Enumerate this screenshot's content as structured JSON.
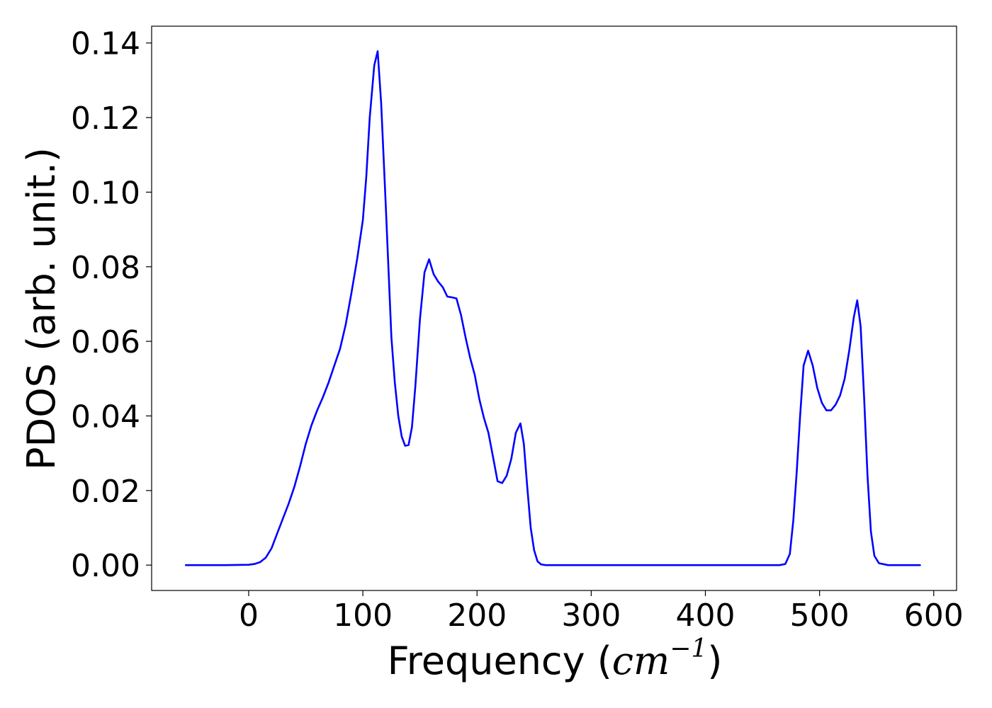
{
  "chart_data": {
    "type": "line",
    "xlabel": "Frequency (cm⁻¹)",
    "xlabel_parts": {
      "prefix": "Frequency (",
      "unit": "cm",
      "exponent": "−1",
      "suffix": ")"
    },
    "ylabel": "PDOS (arb. unit.)",
    "xlim": [
      -85,
      620
    ],
    "ylim": [
      -0.0068,
      0.1445
    ],
    "xticks": [
      0,
      100,
      200,
      300,
      400,
      500,
      600
    ],
    "xtick_labels": [
      "0",
      "100",
      "200",
      "300",
      "400",
      "500",
      "600"
    ],
    "yticks": [
      0.0,
      0.02,
      0.04,
      0.06,
      0.08,
      0.1,
      0.12,
      0.14
    ],
    "ytick_labels": [
      "0.00",
      "0.02",
      "0.04",
      "0.06",
      "0.08",
      "0.10",
      "0.12",
      "0.14"
    ],
    "grid": false,
    "line_color": "#0000ff",
    "series": [
      {
        "x": [
          -55,
          -40,
          -20,
          0,
          5,
          10,
          15,
          20,
          25,
          30,
          35,
          40,
          45,
          50,
          55,
          60,
          65,
          70,
          75,
          80,
          85,
          90,
          95,
          100,
          103,
          106,
          110,
          113,
          116,
          120,
          125,
          128,
          131,
          134,
          137,
          140,
          143,
          146,
          150,
          154,
          158,
          162,
          166,
          170,
          174,
          178,
          182,
          186,
          190,
          194,
          198,
          202,
          206,
          210,
          214,
          218,
          222,
          226,
          230,
          234,
          238,
          241,
          244,
          247,
          250,
          253,
          256,
          260,
          270,
          300,
          350,
          400,
          450,
          465,
          470,
          474,
          477,
          480,
          483,
          486,
          490,
          494,
          498,
          502,
          506,
          510,
          514,
          518,
          522,
          526,
          530,
          533,
          536,
          539,
          542,
          545,
          548,
          552,
          560,
          588
        ],
        "y": [
          0,
          0,
          0,
          0.0001,
          0.0003,
          0.0008,
          0.002,
          0.0045,
          0.0085,
          0.0125,
          0.0165,
          0.021,
          0.0265,
          0.0325,
          0.0375,
          0.0415,
          0.045,
          0.049,
          0.0535,
          0.058,
          0.0645,
          0.073,
          0.082,
          0.0925,
          0.104,
          0.12,
          0.134,
          0.1378,
          0.124,
          0.097,
          0.061,
          0.049,
          0.04,
          0.0345,
          0.032,
          0.0322,
          0.037,
          0.048,
          0.066,
          0.0785,
          0.082,
          0.078,
          0.076,
          0.0745,
          0.072,
          0.0718,
          0.0715,
          0.067,
          0.061,
          0.0555,
          0.051,
          0.0445,
          0.0395,
          0.0355,
          0.029,
          0.0225,
          0.022,
          0.024,
          0.0285,
          0.0355,
          0.038,
          0.0325,
          0.021,
          0.01,
          0.004,
          0.001,
          0.0002,
          0,
          0,
          0,
          0,
          0,
          0,
          0,
          0.0003,
          0.003,
          0.012,
          0.025,
          0.04,
          0.0535,
          0.0575,
          0.0535,
          0.0475,
          0.0435,
          0.0415,
          0.0415,
          0.043,
          0.0455,
          0.05,
          0.0575,
          0.0665,
          0.071,
          0.064,
          0.045,
          0.024,
          0.009,
          0.0025,
          0.0005,
          0,
          0
        ]
      }
    ]
  }
}
